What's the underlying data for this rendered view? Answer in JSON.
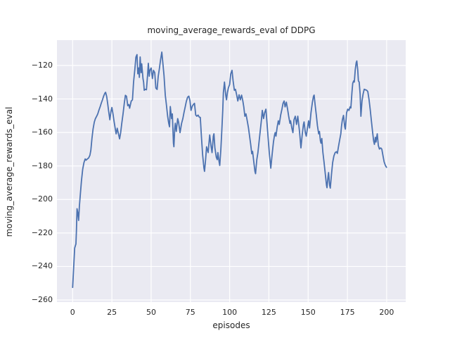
{
  "title": "moving_average_rewards_eval of DDPG",
  "colors": {
    "figure_bg": "#ffffff",
    "axes_bg": "#eaeaf2",
    "grid": "#ffffff",
    "text": "#262626",
    "line": "#4c72b0"
  },
  "chart_data": {
    "type": "line",
    "title": "moving_average_rewards_eval of DDPG",
    "xlabel": "episodes",
    "ylabel": "moving_average_rewards_eval",
    "grid": true,
    "legend": null,
    "xlim": [
      -9.99,
      212.13
    ],
    "ylim": [
      -261.26,
      -104.87
    ],
    "x_ticks": [
      0,
      25,
      50,
      75,
      100,
      125,
      150,
      175,
      200
    ],
    "x_tick_labels": [
      "0",
      "25",
      "50",
      "75",
      "100",
      "125",
      "150",
      "175",
      "200"
    ],
    "y_ticks": [
      -120,
      -140,
      -160,
      -180,
      -200,
      -220,
      -240,
      -260
    ],
    "y_tick_labels": [
      "−120",
      "−140",
      "−160",
      "−180",
      "−200",
      "−220",
      "−240",
      "−260"
    ],
    "series": [
      {
        "name": "moving_average_rewards_eval",
        "color": "#4c72b0",
        "points": [
          [
            0,
            -252.5
          ],
          [
            0.8,
            -238
          ],
          [
            1.3,
            -229
          ],
          [
            2.1,
            -226.5
          ],
          [
            2.4,
            -219
          ],
          [
            2.8,
            -205.5
          ],
          [
            3.3,
            -208
          ],
          [
            3.8,
            -212.5
          ],
          [
            4.3,
            -204
          ],
          [
            4.9,
            -197
          ],
          [
            5.6,
            -189
          ],
          [
            6.4,
            -182
          ],
          [
            7.2,
            -178
          ],
          [
            8,
            -175.8
          ],
          [
            8.6,
            -176.5
          ],
          [
            9.4,
            -175.8
          ],
          [
            10.2,
            -175.2
          ],
          [
            11,
            -173.6
          ],
          [
            11.6,
            -170.6
          ],
          [
            12.3,
            -163.6
          ],
          [
            13,
            -158
          ],
          [
            13.8,
            -153.8
          ],
          [
            14.5,
            -151.7
          ],
          [
            15.3,
            -150.3
          ],
          [
            16,
            -148.9
          ],
          [
            16.7,
            -146.8
          ],
          [
            17.5,
            -144.7
          ],
          [
            18.2,
            -142.6
          ],
          [
            19,
            -140.5
          ],
          [
            19.7,
            -138.4
          ],
          [
            20.5,
            -136.6
          ],
          [
            21,
            -136
          ],
          [
            21.7,
            -138.6
          ],
          [
            22.3,
            -142.6
          ],
          [
            22.9,
            -147
          ],
          [
            23.7,
            -152.4
          ],
          [
            24.4,
            -147.5
          ],
          [
            25,
            -145.1
          ],
          [
            25.7,
            -148.9
          ],
          [
            26.4,
            -153.5
          ],
          [
            27.1,
            -157.5
          ],
          [
            27.7,
            -160.8
          ],
          [
            28.4,
            -157.5
          ],
          [
            29.1,
            -160.5
          ],
          [
            29.9,
            -163.8
          ],
          [
            30.6,
            -160
          ],
          [
            31.3,
            -154.5
          ],
          [
            32.1,
            -148.9
          ],
          [
            32.9,
            -142.6
          ],
          [
            33.6,
            -137.8
          ],
          [
            34.3,
            -138.4
          ],
          [
            35.1,
            -144
          ],
          [
            35.8,
            -143.3
          ],
          [
            36.3,
            -145.5
          ],
          [
            37.3,
            -141.3
          ],
          [
            38.1,
            -140.5
          ],
          [
            38.8,
            -130
          ],
          [
            39.6,
            -122.5
          ],
          [
            40.3,
            -115
          ],
          [
            41,
            -113.5
          ],
          [
            41.5,
            -125
          ],
          [
            42.1,
            -121.5
          ],
          [
            42.5,
            -127.1
          ],
          [
            43,
            -114.9
          ],
          [
            43.6,
            -124.3
          ],
          [
            44,
            -119
          ],
          [
            44.8,
            -127.8
          ],
          [
            45.2,
            -129.9
          ],
          [
            45.6,
            -134.8
          ],
          [
            46.3,
            -134.2
          ],
          [
            47,
            -134.5
          ],
          [
            47.8,
            -124.8
          ],
          [
            48.2,
            -118.7
          ],
          [
            48.8,
            -126.4
          ],
          [
            49.2,
            -122.9
          ],
          [
            50,
            -121.5
          ],
          [
            50.8,
            -127.8
          ],
          [
            51.5,
            -122.9
          ],
          [
            52.3,
            -124.3
          ],
          [
            53,
            -133.5
          ],
          [
            53.8,
            -134.3
          ],
          [
            54.5,
            -126.5
          ],
          [
            55.2,
            -122.2
          ],
          [
            56,
            -116.6
          ],
          [
            56.8,
            -112
          ],
          [
            57.5,
            -119
          ],
          [
            58.2,
            -126
          ],
          [
            59,
            -137.7
          ],
          [
            59.7,
            -143.3
          ],
          [
            60.5,
            -150.3
          ],
          [
            61.2,
            -154.5
          ],
          [
            61.7,
            -156.6
          ],
          [
            62.2,
            -144.5
          ],
          [
            63,
            -151.7
          ],
          [
            63.5,
            -148.9
          ],
          [
            64.2,
            -166.4
          ],
          [
            64.5,
            -168.5
          ],
          [
            65,
            -158
          ],
          [
            65.4,
            -154.5
          ],
          [
            66,
            -159.4
          ],
          [
            66.9,
            -151.7
          ],
          [
            67.5,
            -154
          ],
          [
            68.4,
            -160.1
          ],
          [
            69.4,
            -154.5
          ],
          [
            70.2,
            -151.7
          ],
          [
            70.9,
            -148.2
          ],
          [
            71.7,
            -144.7
          ],
          [
            72.4,
            -141.5
          ],
          [
            73.2,
            -139
          ],
          [
            74,
            -138.3
          ],
          [
            74.7,
            -141
          ],
          [
            75.4,
            -146.8
          ],
          [
            76.1,
            -144.5
          ],
          [
            76.9,
            -143.3
          ],
          [
            77.6,
            -142.6
          ],
          [
            78.4,
            -149.6
          ],
          [
            79.1,
            -150.3
          ],
          [
            79.9,
            -149.6
          ],
          [
            80.6,
            -150.8
          ],
          [
            81.3,
            -151
          ],
          [
            82.1,
            -163.6
          ],
          [
            82.8,
            -173.4
          ],
          [
            83.6,
            -181.1
          ],
          [
            84,
            -183.2
          ],
          [
            84.7,
            -176
          ],
          [
            85.3,
            -168.5
          ],
          [
            86.3,
            -172
          ],
          [
            87.3,
            -161.5
          ],
          [
            88.1,
            -167.8
          ],
          [
            88.8,
            -172
          ],
          [
            89.6,
            -162.2
          ],
          [
            90,
            -160.8
          ],
          [
            90.6,
            -169.2
          ],
          [
            91.5,
            -174.8
          ],
          [
            92.1,
            -176.2
          ],
          [
            92.5,
            -172
          ],
          [
            93.3,
            -177.6
          ],
          [
            93.7,
            -179.7
          ],
          [
            94.4,
            -170
          ],
          [
            95,
            -159
          ],
          [
            95.6,
            -147
          ],
          [
            96,
            -136.3
          ],
          [
            96.7,
            -129.9
          ],
          [
            97.5,
            -137.7
          ],
          [
            98,
            -140.5
          ],
          [
            98.6,
            -136
          ],
          [
            99.2,
            -133.4
          ],
          [
            100,
            -131.3
          ],
          [
            100.7,
            -125
          ],
          [
            101.5,
            -122.9
          ],
          [
            102.2,
            -129.2
          ],
          [
            103,
            -134.8
          ],
          [
            103.7,
            -134.2
          ],
          [
            104.5,
            -137.7
          ],
          [
            105.2,
            -141.2
          ],
          [
            106,
            -137.5
          ],
          [
            106.8,
            -140.5
          ],
          [
            107.6,
            -137.7
          ],
          [
            108.4,
            -141.2
          ],
          [
            109,
            -144.7
          ],
          [
            109.7,
            -150.3
          ],
          [
            110.4,
            -148.9
          ],
          [
            111.2,
            -153
          ],
          [
            112,
            -157.3
          ],
          [
            112.6,
            -161.5
          ],
          [
            113.4,
            -167.1
          ],
          [
            114.1,
            -172.7
          ],
          [
            114.6,
            -171.3
          ],
          [
            115.3,
            -176.9
          ],
          [
            116.1,
            -183.2
          ],
          [
            116.5,
            -184.6
          ],
          [
            117.3,
            -176.2
          ],
          [
            118,
            -172
          ],
          [
            118.8,
            -165
          ],
          [
            119.6,
            -158
          ],
          [
            120.3,
            -152
          ],
          [
            120.8,
            -146.8
          ],
          [
            121.6,
            -151.7
          ],
          [
            122.3,
            -148.2
          ],
          [
            123.1,
            -146.1
          ],
          [
            123.8,
            -154.5
          ],
          [
            124.6,
            -164.3
          ],
          [
            125.3,
            -172.7
          ],
          [
            126.2,
            -181.3
          ],
          [
            127.1,
            -172.7
          ],
          [
            127.9,
            -165.7
          ],
          [
            128.6,
            -161.5
          ],
          [
            129,
            -160.1
          ],
          [
            129.5,
            -162.2
          ],
          [
            130.3,
            -156.6
          ],
          [
            131,
            -153
          ],
          [
            131.6,
            -155.2
          ],
          [
            132.5,
            -149.6
          ],
          [
            133.3,
            -146.1
          ],
          [
            134,
            -142.6
          ],
          [
            134.7,
            -141.2
          ],
          [
            135.3,
            -144.7
          ],
          [
            136.1,
            -141.9
          ],
          [
            136.9,
            -146.1
          ],
          [
            137.6,
            -150.3
          ],
          [
            138.4,
            -154.5
          ],
          [
            138.8,
            -153
          ],
          [
            139.6,
            -157.3
          ],
          [
            140.3,
            -160.1
          ],
          [
            141,
            -152.4
          ],
          [
            141.8,
            -150.3
          ],
          [
            142.6,
            -155.2
          ],
          [
            143.4,
            -150.3
          ],
          [
            144.5,
            -159.4
          ],
          [
            145.4,
            -169.2
          ],
          [
            146.2,
            -161.5
          ],
          [
            147,
            -155.2
          ],
          [
            147.4,
            -153.7
          ],
          [
            148.2,
            -160.1
          ],
          [
            148.8,
            -162.2
          ],
          [
            149.7,
            -156.6
          ],
          [
            150.3,
            -153
          ],
          [
            150.9,
            -157.3
          ],
          [
            151.8,
            -148.2
          ],
          [
            152.7,
            -142
          ],
          [
            153.4,
            -138.4
          ],
          [
            153.8,
            -137.7
          ],
          [
            154.5,
            -144
          ],
          [
            155.2,
            -149.6
          ],
          [
            155.9,
            -155.9
          ],
          [
            156.7,
            -160.8
          ],
          [
            157.2,
            -159.4
          ],
          [
            157.8,
            -165
          ],
          [
            158.2,
            -166.4
          ],
          [
            158.7,
            -163.6
          ],
          [
            159.4,
            -172
          ],
          [
            160.1,
            -177.6
          ],
          [
            160.9,
            -184.6
          ],
          [
            161.7,
            -191.6
          ],
          [
            162,
            -193
          ],
          [
            162.7,
            -186
          ],
          [
            163,
            -183.9
          ],
          [
            163.7,
            -191.6
          ],
          [
            164.1,
            -193.2
          ],
          [
            164.9,
            -184.6
          ],
          [
            165.6,
            -178
          ],
          [
            166.4,
            -174
          ],
          [
            167.2,
            -172
          ],
          [
            168,
            -171.5
          ],
          [
            168.6,
            -172.5
          ],
          [
            169.3,
            -168.5
          ],
          [
            170.1,
            -164.3
          ],
          [
            170.8,
            -160.8
          ],
          [
            171.2,
            -156.6
          ],
          [
            171.8,
            -152.4
          ],
          [
            172.5,
            -149.8
          ],
          [
            173.3,
            -156.6
          ],
          [
            173.7,
            -158
          ],
          [
            174.5,
            -148.2
          ],
          [
            175.2,
            -146.1
          ],
          [
            176,
            -146.8
          ],
          [
            176.7,
            -144.7
          ],
          [
            177.2,
            -145.4
          ],
          [
            177.9,
            -136
          ],
          [
            178.4,
            -130.6
          ],
          [
            179,
            -129.2
          ],
          [
            179.4,
            -129.9
          ],
          [
            180,
            -122.5
          ],
          [
            180.6,
            -118.3
          ],
          [
            181,
            -117.3
          ],
          [
            181.6,
            -122.9
          ],
          [
            182,
            -129.2
          ],
          [
            182.5,
            -129.9
          ],
          [
            183.1,
            -137
          ],
          [
            183.6,
            -150.3
          ],
          [
            184.3,
            -141.2
          ],
          [
            185,
            -137
          ],
          [
            185.7,
            -134.2
          ],
          [
            186.5,
            -134.5
          ],
          [
            187.3,
            -134.8
          ],
          [
            188,
            -135.6
          ],
          [
            188.8,
            -140.5
          ],
          [
            189.5,
            -146.1
          ],
          [
            190.2,
            -152.4
          ],
          [
            191,
            -159.4
          ],
          [
            191.7,
            -165
          ],
          [
            192.2,
            -167.1
          ],
          [
            192.8,
            -162.9
          ],
          [
            193.2,
            -165.7
          ],
          [
            194,
            -160.8
          ],
          [
            194.7,
            -167.8
          ],
          [
            195.4,
            -169.9
          ],
          [
            196.2,
            -169.2
          ],
          [
            196.9,
            -169.9
          ],
          [
            197.7,
            -174.1
          ],
          [
            198.4,
            -177.6
          ],
          [
            199.2,
            -179.7
          ],
          [
            199.9,
            -180.8
          ]
        ]
      }
    ]
  }
}
